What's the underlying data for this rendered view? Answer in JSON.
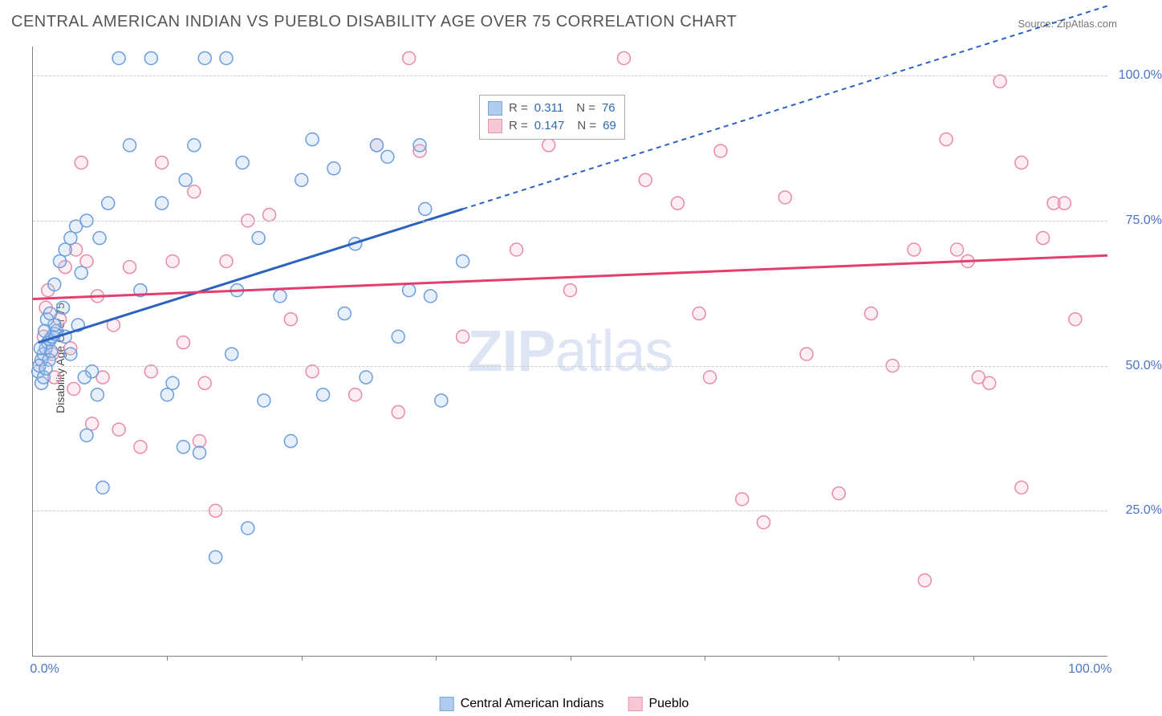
{
  "title": "CENTRAL AMERICAN INDIAN VS PUEBLO DISABILITY AGE OVER 75 CORRELATION CHART",
  "source_label": "Source: ",
  "source_value": "ZipAtlas.com",
  "ylabel": "Disability Age Over 75",
  "watermark": {
    "zip": "ZIP",
    "atlas": "atlas"
  },
  "chart": {
    "type": "scatter",
    "background_color": "#ffffff",
    "xlim": [
      0,
      100
    ],
    "ylim": [
      0,
      105
    ],
    "x_ticks_major": [
      0,
      100
    ],
    "x_tick_labels": [
      "0.0%",
      "100.0%"
    ],
    "x_ticks_minor": [
      12.5,
      25,
      37.5,
      50,
      62.5,
      75,
      87.5
    ],
    "y_ticks": [
      25,
      50,
      75,
      100
    ],
    "y_tick_labels": [
      "25.0%",
      "50.0%",
      "75.0%",
      "100.0%"
    ],
    "grid_color": "#cccccc",
    "axis_color": "#808080",
    "marker_radius": 8,
    "marker_stroke_width": 1.5,
    "marker_fill_opacity": 0.28,
    "series": [
      {
        "name": "Central American Indians",
        "color_stroke": "#6a9edc",
        "color_fill": "#a9c7ec",
        "trend": {
          "color": "#2b62c2",
          "width": 3,
          "x1": 0.5,
          "y1": 54,
          "x2": 40,
          "y2": 77,
          "dash_x2": 100,
          "dash_y2": 112
        },
        "legend": {
          "R_label": "R  = ",
          "R": "0.311",
          "N_label": "N  = ",
          "N": "76"
        },
        "points": [
          [
            0.5,
            49
          ],
          [
            0.6,
            50
          ],
          [
            0.8,
            51
          ],
          [
            1.0,
            52
          ],
          [
            1.2,
            53
          ],
          [
            1.4,
            54
          ],
          [
            1.6,
            54.5
          ],
          [
            1.8,
            55
          ],
          [
            2.0,
            55.5
          ],
          [
            2.2,
            56
          ],
          [
            0.8,
            47
          ],
          [
            1.0,
            48
          ],
          [
            1.2,
            49.5
          ],
          [
            1.5,
            51
          ],
          [
            1.7,
            52.5
          ],
          [
            2.0,
            57
          ],
          [
            0.7,
            53
          ],
          [
            1.1,
            56
          ],
          [
            1.3,
            58
          ],
          [
            1.6,
            59
          ],
          [
            2,
            64
          ],
          [
            2.5,
            68
          ],
          [
            3,
            70
          ],
          [
            3.5,
            72
          ],
          [
            4,
            74
          ],
          [
            4.5,
            66
          ],
          [
            5,
            75
          ],
          [
            4.2,
            57
          ],
          [
            5.5,
            49
          ],
          [
            6,
            45
          ],
          [
            3,
            55
          ],
          [
            3.5,
            52
          ],
          [
            4.8,
            48
          ],
          [
            2.8,
            60
          ],
          [
            6.2,
            72
          ],
          [
            7,
            78
          ],
          [
            8,
            103
          ],
          [
            10,
            63
          ],
          [
            11,
            103
          ],
          [
            12,
            78
          ],
          [
            12.5,
            45
          ],
          [
            13,
            47
          ],
          [
            14,
            36
          ],
          [
            14.2,
            82
          ],
          [
            15,
            88
          ],
          [
            15.5,
            35
          ],
          [
            16,
            103
          ],
          [
            17,
            17
          ],
          [
            18,
            103
          ],
          [
            18.5,
            52
          ],
          [
            19,
            63
          ],
          [
            19.5,
            85
          ],
          [
            20,
            22
          ],
          [
            21,
            72
          ],
          [
            21.5,
            44
          ],
          [
            23,
            62
          ],
          [
            24,
            37
          ],
          [
            26,
            89
          ],
          [
            27,
            45
          ],
          [
            28,
            84
          ],
          [
            30,
            71
          ],
          [
            31,
            48
          ],
          [
            32,
            88
          ],
          [
            33,
            86
          ],
          [
            34,
            55
          ],
          [
            35,
            63
          ],
          [
            36,
            88
          ],
          [
            36.5,
            77
          ],
          [
            38,
            44
          ],
          [
            40,
            68
          ],
          [
            37,
            62
          ],
          [
            29,
            59
          ],
          [
            25,
            82
          ],
          [
            9,
            88
          ],
          [
            6.5,
            29
          ],
          [
            5,
            38
          ]
        ]
      },
      {
        "name": "Pueblo",
        "color_stroke": "#e88ba3",
        "color_fill": "#f6c3d1",
        "trend": {
          "color": "#e23e6e",
          "width": 3,
          "x1": 0,
          "y1": 61.5,
          "x2": 100,
          "y2": 69,
          "dash_x2": null,
          "dash_y2": null
        },
        "legend": {
          "R_label": "R  = ",
          "R": "0.147",
          "N_label": "N  = ",
          "N": "69"
        },
        "points": [
          [
            0.6,
            50
          ],
          [
            1.0,
            55
          ],
          [
            1.2,
            60
          ],
          [
            1.4,
            63
          ],
          [
            1.8,
            52
          ],
          [
            2,
            48
          ],
          [
            2.5,
            58
          ],
          [
            3,
            67
          ],
          [
            3.5,
            53
          ],
          [
            3.8,
            46
          ],
          [
            4,
            70
          ],
          [
            4.5,
            85
          ],
          [
            5,
            68
          ],
          [
            5.5,
            40
          ],
          [
            6,
            62
          ],
          [
            6.5,
            48
          ],
          [
            7.5,
            57
          ],
          [
            8,
            39
          ],
          [
            9,
            67
          ],
          [
            10,
            36
          ],
          [
            11,
            49
          ],
          [
            12,
            85
          ],
          [
            13,
            68
          ],
          [
            14,
            54
          ],
          [
            15,
            80
          ],
          [
            15.5,
            37
          ],
          [
            16,
            47
          ],
          [
            17,
            25
          ],
          [
            18,
            68
          ],
          [
            20,
            75
          ],
          [
            22,
            76
          ],
          [
            24,
            58
          ],
          [
            26,
            49
          ],
          [
            30,
            45
          ],
          [
            32,
            88
          ],
          [
            34,
            42
          ],
          [
            35,
            103
          ],
          [
            36,
            87
          ],
          [
            40,
            55
          ],
          [
            48,
            88
          ],
          [
            55,
            103
          ],
          [
            57,
            82
          ],
          [
            60,
            78
          ],
          [
            62,
            59
          ],
          [
            63,
            48
          ],
          [
            64,
            87
          ],
          [
            66,
            27
          ],
          [
            68,
            23
          ],
          [
            70,
            79
          ],
          [
            72,
            52
          ],
          [
            75,
            28
          ],
          [
            78,
            59
          ],
          [
            80,
            50
          ],
          [
            82,
            70
          ],
          [
            83,
            13
          ],
          [
            85,
            89
          ],
          [
            86,
            70
          ],
          [
            87,
            68
          ],
          [
            88,
            48
          ],
          [
            89,
            47
          ],
          [
            90,
            99
          ],
          [
            92,
            85
          ],
          [
            94,
            72
          ],
          [
            95,
            78
          ],
          [
            96,
            78
          ],
          [
            97,
            58
          ],
          [
            92,
            29
          ],
          [
            50,
            63
          ],
          [
            45,
            70
          ]
        ]
      }
    ]
  },
  "bottom_legend": [
    {
      "name": "Central American Indians"
    },
    {
      "name": "Pueblo"
    }
  ]
}
